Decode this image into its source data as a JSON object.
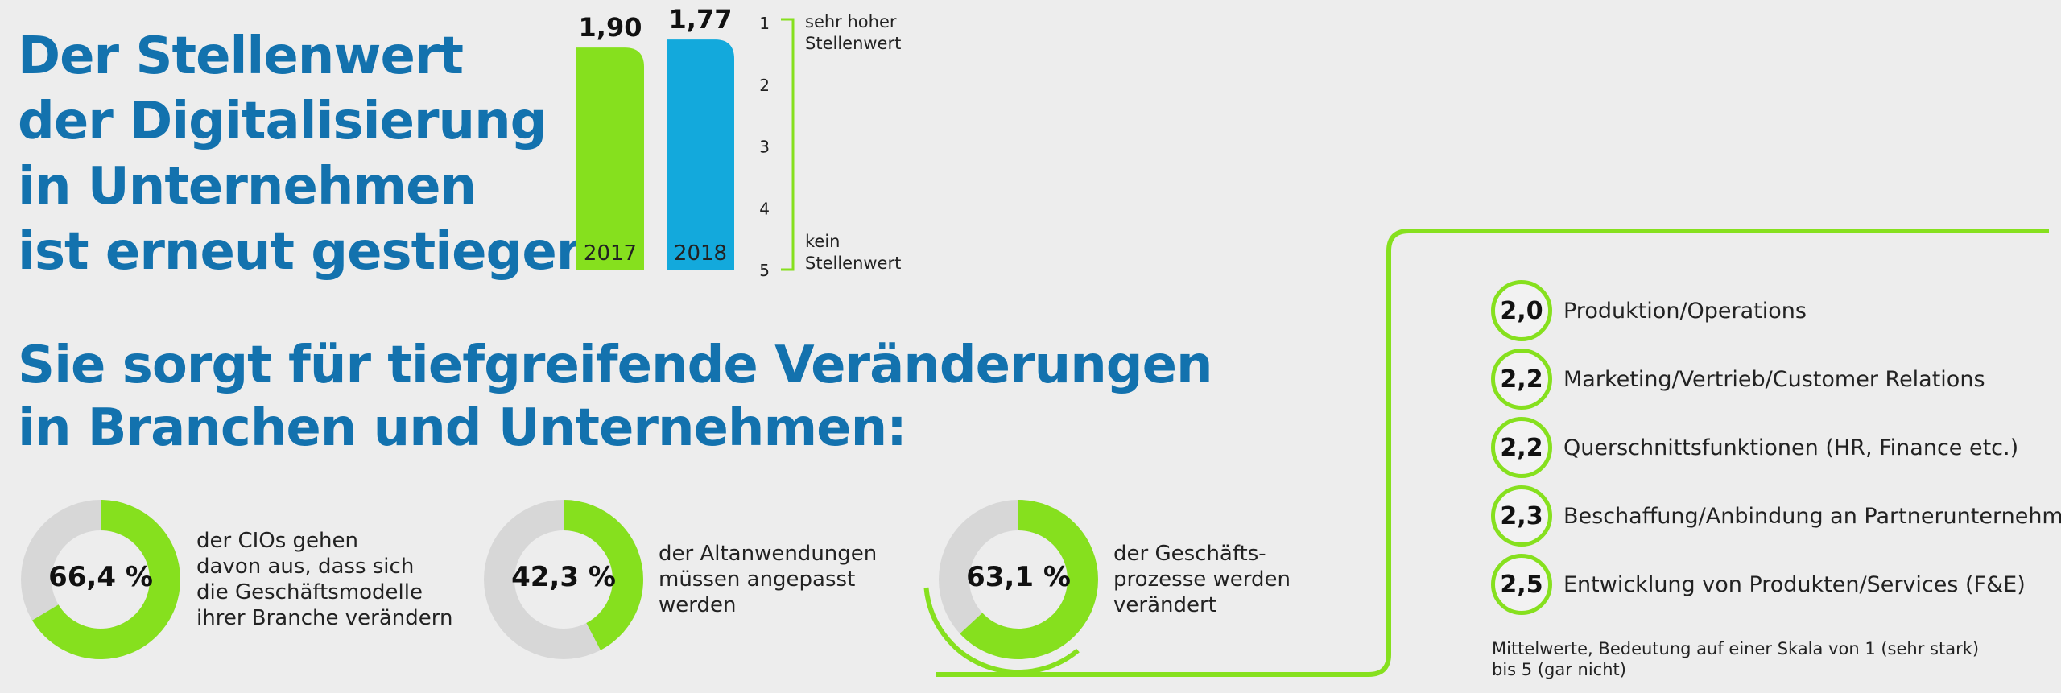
{
  "headline_top": [
    "Der Stellenwert",
    "der Digitalisierung",
    "in Unternehmen",
    "ist erneut gestiegen."
  ],
  "headline_bottom": [
    "Sie sorgt für tiefgreifende Veränderungen",
    "in Branchen und Unternehmen:"
  ],
  "colors": {
    "blue_text": "#1372ae",
    "green": "#86e01e",
    "cyan": "#13a9dc",
    "grey_ring": "#d7d7d7"
  },
  "chart_data": [
    {
      "type": "bar",
      "categories": [
        "2017",
        "2018"
      ],
      "values": [
        1.9,
        1.77
      ],
      "value_labels": [
        "1,90",
        "1,77"
      ],
      "bar_colors": [
        "#86e01e",
        "#13a9dc"
      ],
      "scale": {
        "ticks": [
          "1",
          "2",
          "3",
          "4",
          "5"
        ],
        "top_label": [
          "sehr hoher",
          "Stellenwert"
        ],
        "bottom_label": [
          "kein",
          "Stellenwert"
        ]
      }
    },
    {
      "type": "pie",
      "donuts": [
        {
          "value": 66.4,
          "label": "66,4 %",
          "description": [
            "der CIOs gehen",
            "davon aus, dass sich",
            "die Geschäftsmodelle",
            "ihrer Branche verändern"
          ]
        },
        {
          "value": 42.3,
          "label": "42,3 %",
          "description": [
            "der Altanwendungen",
            "müssen angepasst",
            "werden"
          ]
        },
        {
          "value": 63.1,
          "label": "63,1 %",
          "description": [
            "der Geschäfts-",
            "prozesse werden",
            "verändert"
          ]
        }
      ]
    },
    {
      "type": "table",
      "rows": [
        {
          "value": "2,0",
          "label": "Produktion/Operations"
        },
        {
          "value": "2,2",
          "label": "Marketing/Vertrieb/Customer Relations"
        },
        {
          "value": "2,2",
          "label": "Querschnittsfunktionen (HR, Finance etc.)"
        },
        {
          "value": "2,3",
          "label": "Beschaffung/Anbindung an Partnerunternehmen"
        },
        {
          "value": "2,5",
          "label": "Entwicklung von Produkten/Services (F&E)"
        }
      ],
      "footnote": [
        "Mittelwerte, Bedeutung auf einer Skala von 1 (sehr stark)",
        "bis 5 (gar nicht)"
      ]
    }
  ]
}
